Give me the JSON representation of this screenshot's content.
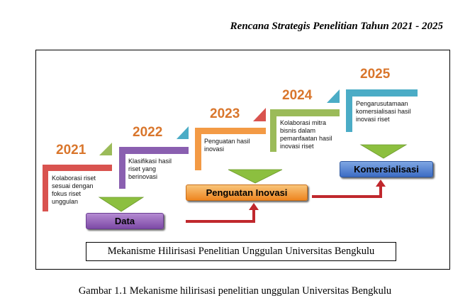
{
  "header": {
    "title": "Rencana Strategis Penelitian Tahun 2021 - 2025"
  },
  "steps": [
    {
      "year": "2021",
      "text": "Kolaborasi riset sesuai dengan fokus riset unggulan",
      "color": "#d9534f"
    },
    {
      "year": "2022",
      "text": "Klasifikasi hasil riset yang berinovasi",
      "color": "#8a5fb0"
    },
    {
      "year": "2023",
      "text": "Penguatan hasil inovasi",
      "color": "#f39a45"
    },
    {
      "year": "2024",
      "text": "Kolaborasi mitra bisnis dalam pemanfaatan hasil  inovasi riset",
      "color": "#9bbb59"
    },
    {
      "year": "2025",
      "text": "Pengarusutamaan komersialisasi hasil inovasi riset",
      "color": "#4bacc6"
    }
  ],
  "boxes": {
    "data": "Data",
    "inovasi": "Penguatan Inovasi",
    "komersialisasi": "Komersialisasi"
  },
  "diagram_caption": "Mekanisme Hilirisasi Penelitian Unggulan Universitas Bengkulu",
  "figure_caption": "Gambar 1.1 Mekanisme hilirisasi penelitian unggulan Universitas Bengkulu",
  "colors": {
    "year_text": "#d9762c",
    "red_arrow": "#c0282d",
    "green_arrow": "#8cbf3f"
  }
}
